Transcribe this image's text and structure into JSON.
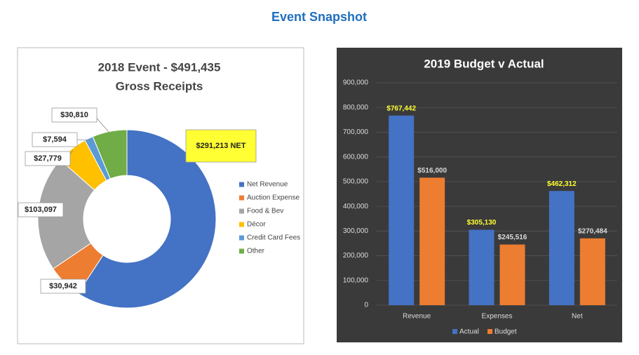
{
  "title": "Event Snapshot",
  "chart_data": [
    {
      "type": "donut",
      "title": [
        "2018 Event - $491,435",
        "Gross Receipts"
      ],
      "categories": [
        "Net Revenue",
        "Auction Expense",
        "Food & Bev",
        "Décor",
        "Credit Card Fees",
        "Other"
      ],
      "values": [
        291213,
        30942,
        103097,
        27779,
        7594,
        30810
      ],
      "value_labels": [
        "$291,213  NET",
        "$30,942",
        "$103,097",
        "$27,779",
        "$7,594",
        "$30,810"
      ],
      "colors": [
        "#4472c4",
        "#ed7d31",
        "#a5a5a5",
        "#ffc000",
        "#5b9bd5",
        "#70ad47"
      ],
      "legend": "right"
    },
    {
      "type": "bar",
      "title": "2019 Budget v Actual",
      "categories": [
        "Revenue",
        "Expenses",
        "Net"
      ],
      "series": [
        {
          "name": "Actual",
          "color": "#4472c4",
          "values": [
            767442,
            305130,
            462312
          ],
          "value_labels": [
            "$767,442",
            "$305,130",
            "$462,312"
          ]
        },
        {
          "name": "Budget",
          "color": "#ed7d31",
          "values": [
            516000,
            245516,
            270484
          ],
          "value_labels": [
            "$516,000",
            "$245,516",
            "$270,484"
          ]
        }
      ],
      "ylim": [
        0,
        900000
      ],
      "yticks": [
        0,
        {
          "value": 100000,
          "label": "100,000"
        },
        {
          "value": 200000,
          "label": "200,000"
        },
        {
          "value": 300000,
          "label": "300,000"
        },
        {
          "value": 400000,
          "label": "400,000"
        },
        {
          "value": 500000,
          "label": "500,000"
        },
        {
          "value": 600000,
          "label": "600,000"
        },
        {
          "value": 700000,
          "label": "700,000"
        },
        {
          "value": 800000,
          "label": "800,000"
        },
        {
          "value": 900000,
          "label": "900,000"
        }
      ],
      "grid": true,
      "legend": "bottom"
    }
  ]
}
